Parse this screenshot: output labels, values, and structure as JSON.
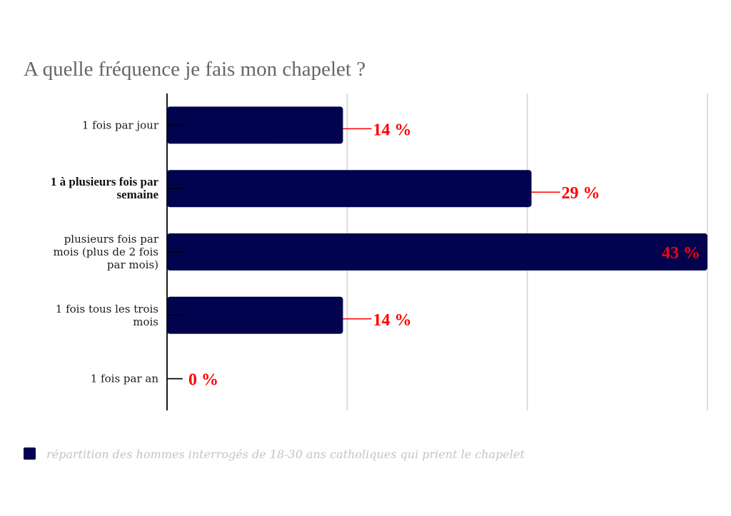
{
  "chart_data": {
    "type": "bar",
    "orientation": "horizontal",
    "title": "A quelle fréquence je fais mon chapelet ?",
    "categories": [
      [
        "1 fois par jour"
      ],
      [
        "1 à plusieurs fois par",
        "semaine"
      ],
      [
        "plusieurs fois par",
        "mois (plus de 2 fois",
        "par mois)"
      ],
      [
        "1 fois tous les trois",
        "mois"
      ],
      [
        "1 fois par an"
      ]
    ],
    "series": [
      {
        "name": "répartition des hommes interrogés de 18-30 ans catholiques qui prient le chapelet",
        "color": "#02034f",
        "values": [
          14,
          29,
          43,
          14,
          0
        ],
        "data_labels": [
          "14 %",
          "29 %",
          "43 %",
          "14 %",
          "0 %"
        ]
      }
    ],
    "xlabel": "",
    "ylabel": "",
    "xlim": [
      0,
      43
    ],
    "grid_lines_x": [
      14.33,
      28.67,
      43
    ],
    "grid": true,
    "tick_labels_x_visible": false,
    "legend_position": "bottom-left",
    "data_label_color": "#ff0000",
    "grid_color": "#cccccc",
    "axis_color": "#000000"
  }
}
